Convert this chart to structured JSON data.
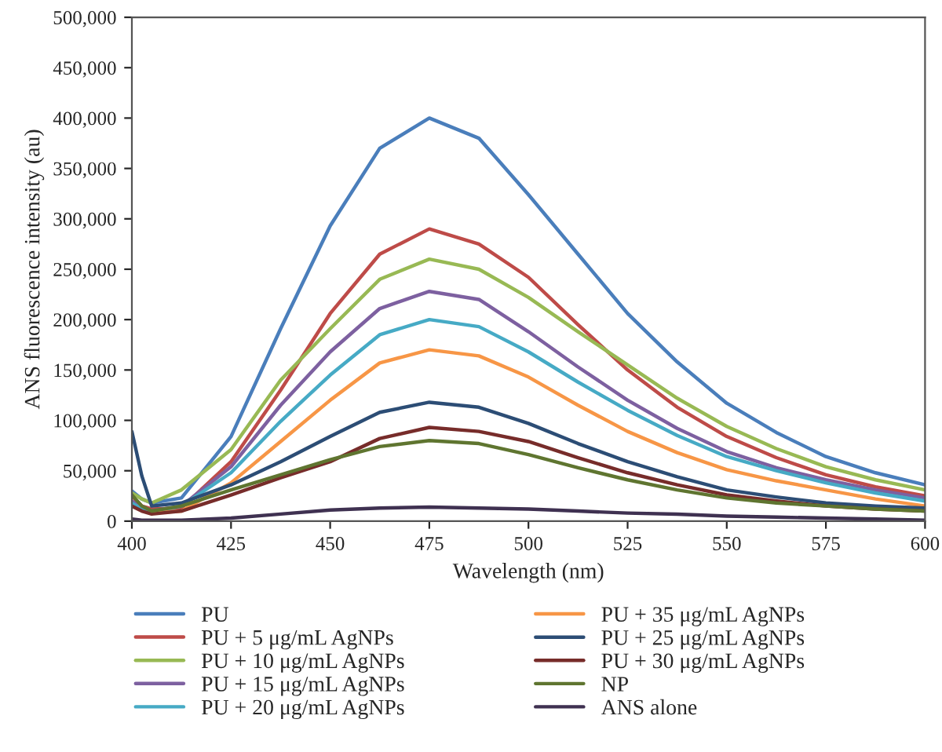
{
  "chart_data": {
    "type": "line",
    "xlabel": "Wavelength (nm)",
    "ylabel": "ANS fluorescence intensity (au)",
    "x": [
      400,
      402.5,
      405,
      412.5,
      425,
      437.5,
      450,
      462.5,
      475,
      487.5,
      500,
      512.5,
      525,
      537.5,
      550,
      562.5,
      575,
      587.5,
      600
    ],
    "series": [
      {
        "name": "PU",
        "color": "#4a7ebb",
        "values": [
          30000,
          22000,
          18000,
          23000,
          84000,
          191000,
          293000,
          370000,
          400000,
          380000,
          324000,
          265000,
          206000,
          158000,
          117000,
          88000,
          64000,
          48000,
          36000
        ]
      },
      {
        "name": "PU + 5 μg/mL AgNPs",
        "color": "#be4b48",
        "values": [
          25000,
          15000,
          12000,
          13000,
          59000,
          130000,
          206000,
          265000,
          290000,
          275000,
          242000,
          195000,
          150000,
          113000,
          84000,
          63000,
          46000,
          34000,
          25000
        ]
      },
      {
        "name": "PU + 10 μg/mL AgNPs",
        "color": "#98b954",
        "values": [
          28000,
          22000,
          18000,
          31000,
          71000,
          140000,
          191000,
          240000,
          260000,
          250000,
          222000,
          188000,
          155000,
          122000,
          94000,
          72000,
          54000,
          41000,
          31000
        ]
      },
      {
        "name": "PU + 15 μg/mL AgNPs",
        "color": "#7d60a0",
        "values": [
          20000,
          13000,
          10000,
          15000,
          54000,
          115000,
          168000,
          211000,
          228000,
          220000,
          188000,
          153000,
          120000,
          92000,
          69000,
          53000,
          41000,
          31000,
          23000
        ]
      },
      {
        "name": "PU + 20 μg/mL AgNPs",
        "color": "#46aac5",
        "values": [
          18000,
          12000,
          9000,
          15000,
          48000,
          99000,
          145000,
          185000,
          200000,
          193000,
          168000,
          138000,
          110000,
          85000,
          64000,
          50000,
          38000,
          28000,
          20000
        ]
      },
      {
        "name": "PU + 35 μg/mL AgNPs",
        "color": "#f79646",
        "values": [
          null,
          null,
          8000,
          10000,
          38000,
          79000,
          120000,
          157000,
          170000,
          164000,
          143000,
          115000,
          89000,
          68000,
          51000,
          40000,
          31000,
          22000,
          15000
        ]
      },
      {
        "name": "PU + 25 μg/mL AgNPs",
        "color": "#2c4d75",
        "values": [
          89000,
          45000,
          15000,
          18000,
          36000,
          59000,
          84000,
          108000,
          118000,
          113000,
          97000,
          77000,
          59000,
          44000,
          31000,
          24000,
          18000,
          15000,
          13000
        ]
      },
      {
        "name": "PU + 30 μg/mL AgNPs",
        "color": "#772c2a",
        "values": [
          15000,
          10000,
          7000,
          10000,
          26000,
          43000,
          59000,
          82000,
          93000,
          89000,
          79000,
          63000,
          48000,
          36000,
          26000,
          20000,
          15000,
          12000,
          10000
        ]
      },
      {
        "name": "NP",
        "color": "#5f7530",
        "values": [
          26000,
          15000,
          10000,
          15000,
          31000,
          46000,
          61000,
          74000,
          80000,
          77000,
          66000,
          53000,
          41000,
          31000,
          23000,
          18000,
          15000,
          12000,
          10000
        ]
      },
      {
        "name": "ANS alone",
        "color": "#3f3151",
        "values": [
          2000,
          1000,
          1000,
          1000,
          3000,
          7000,
          11000,
          13000,
          14000,
          13000,
          12000,
          10000,
          8000,
          7000,
          5000,
          4000,
          3000,
          2000,
          1000
        ]
      }
    ],
    "xlim": [
      400,
      600
    ],
    "xticks": [
      400,
      425,
      450,
      475,
      500,
      525,
      550,
      575,
      600
    ],
    "ylim": [
      0,
      500000
    ],
    "yticks": [
      0,
      {
        "value": 50000,
        "label": "50,000"
      },
      {
        "value": 100000,
        "label": "100,000"
      },
      {
        "value": 150000,
        "label": "150,000"
      },
      {
        "value": 200000,
        "label": "200,000"
      },
      {
        "value": 250000,
        "label": "250,000"
      },
      {
        "value": 300000,
        "label": "300,000"
      },
      {
        "value": 350000,
        "label": "350,000"
      },
      {
        "value": 400000,
        "label": "400,000"
      },
      {
        "value": 450000,
        "label": "450,000"
      },
      {
        "value": 500000,
        "label": "500,000"
      }
    ],
    "grid": false,
    "legend": "bottom",
    "marker": "none",
    "line_style": "solid"
  }
}
